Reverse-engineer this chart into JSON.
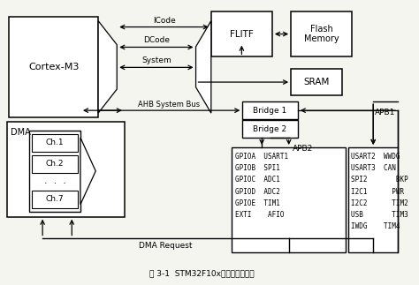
{
  "title": "图 3-1  STM32F10x处理器总线结构",
  "bg_color": "#f5f5f0",
  "apb2_text": "GPIOA  USART1\nGPIOB  SPI1\nGPIOC  ADC1\nGPIOD  ADC2\nGPIOE  TIM1\nEXTI    AFIO",
  "apb1_text": "USART2  WWDG\nUSART3  CAN\nSPI2       BKP\nI2C1      PWR\nI2C2      TIM2\nUSB       TIM3\nIWDG    TIM4",
  "icode_label": "ICode",
  "dcode_label": "DCode",
  "system_label": "System",
  "ahb_label": "AHB System Bus",
  "apb2_label": "APB2",
  "apb1_label": "APB1",
  "dma_req_label": "DMA Request",
  "cortex_label": "Cortex-M3",
  "flitf_label": "FLITF",
  "flash_label": "Flash\nMemory",
  "sram_label": "SRAM",
  "bridge1_label": "Bridge 1",
  "bridge2_label": "Bridge 2",
  "dma_label": "DMA",
  "ch_labels": [
    "Ch.1",
    "Ch.2",
    "Ch.7"
  ],
  "ch_dots": "·  ·  ·"
}
